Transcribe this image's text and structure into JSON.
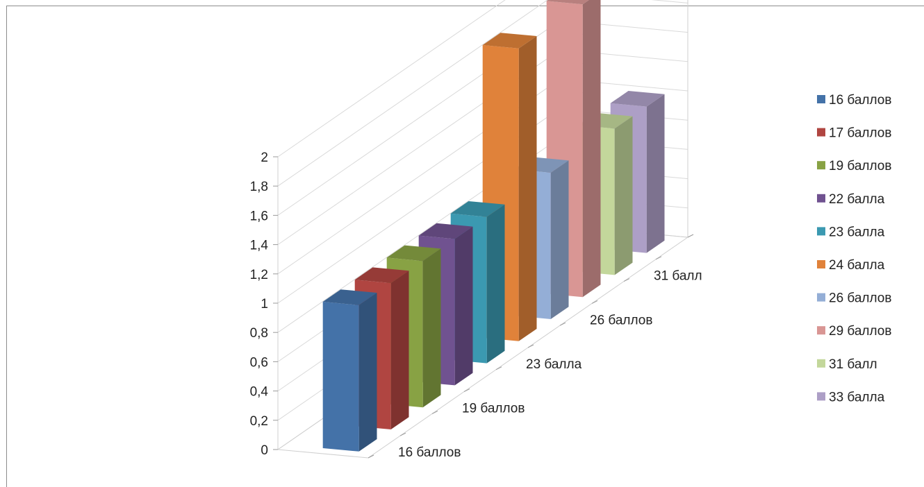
{
  "chart_data": {
    "type": "bar",
    "title": "",
    "xlabel": "",
    "ylabel": "",
    "ylim": [
      0,
      2
    ],
    "yticks": [
      "0",
      "0,2",
      "0,4",
      "0,6",
      "0,8",
      "1",
      "1,2",
      "1,4",
      "1,6",
      "1,8",
      "2"
    ],
    "depth_labels": [
      "16 баллов",
      "19 баллов",
      "23 балла",
      "26 баллов",
      "31 балл"
    ],
    "grid": true,
    "legend_position": "right",
    "series": [
      {
        "name": "16 баллов",
        "value": 1,
        "color": "#4472A8"
      },
      {
        "name": "17 баллов",
        "value": 1,
        "color": "#B04541"
      },
      {
        "name": "19 баллов",
        "value": 1,
        "color": "#88A244"
      },
      {
        "name": "22 балла",
        "value": 1,
        "color": "#705290"
      },
      {
        "name": "23 балла",
        "value": 1,
        "color": "#3B99B1"
      },
      {
        "name": "24 балла",
        "value": 2,
        "color": "#E0823A"
      },
      {
        "name": "26 баллов",
        "value": 1,
        "color": "#94AED6"
      },
      {
        "name": "29 баллов",
        "value": 2,
        "color": "#D99694"
      },
      {
        "name": "31 балл",
        "value": 1,
        "color": "#C3D79B"
      },
      {
        "name": "33 балла",
        "value": 1,
        "color": "#AD9FC6"
      }
    ]
  }
}
